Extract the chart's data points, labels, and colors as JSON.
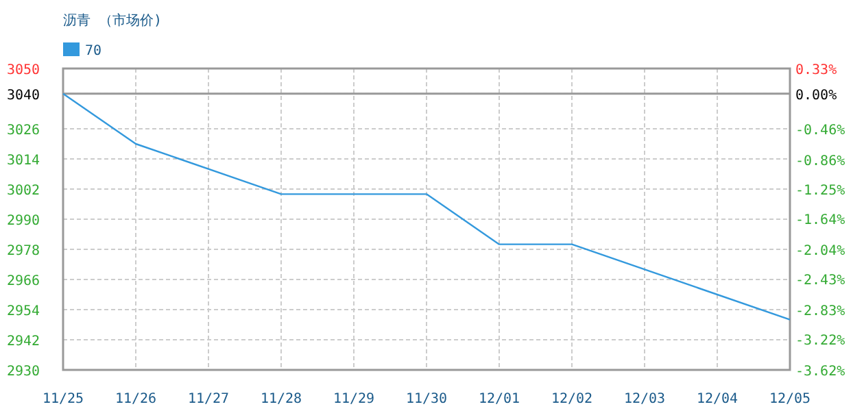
{
  "chart_data": {
    "type": "line",
    "title": "沥青 （市场价)",
    "categories": [
      "11/25",
      "11/26",
      "11/27",
      "11/28",
      "11/29",
      "11/30",
      "12/01",
      "12/02",
      "12/03",
      "12/04",
      "12/05"
    ],
    "series": [
      {
        "name": "70",
        "color": "#3399dd",
        "values": [
          3040,
          3020,
          null,
          3000,
          null,
          3000,
          2980,
          2980,
          null,
          null,
          2950
        ]
      }
    ],
    "ylim": [
      2930,
      3050
    ],
    "yticks": [
      2930,
      2942,
      2954,
      2966,
      2978,
      2990,
      3002,
      3014,
      3026,
      3040,
      3050
    ],
    "y2lim": [
      -3.62,
      0.33
    ],
    "y2ticks": [
      {
        "value": -3.62,
        "label": "-3.62%"
      },
      {
        "value": -3.22,
        "label": "-3.22%"
      },
      {
        "value": -2.83,
        "label": "-2.83%"
      },
      {
        "value": -2.43,
        "label": "-2.43%"
      },
      {
        "value": -2.04,
        "label": "-2.04%"
      },
      {
        "value": -1.64,
        "label": "-1.64%"
      },
      {
        "value": -1.25,
        "label": "-1.25%"
      },
      {
        "value": -0.86,
        "label": "-0.86%"
      },
      {
        "value": -0.46,
        "label": "-0.46%"
      },
      {
        "value": 0,
        "label": "0.00%"
      },
      {
        "value": 0.33,
        "label": "0.33%"
      }
    ],
    "ref_lines": [
      {
        "axis": "y",
        "value": 3040,
        "color": "#999999"
      }
    ],
    "grid": true,
    "legend": "top left",
    "line_style": "solid",
    "marker": "none"
  }
}
